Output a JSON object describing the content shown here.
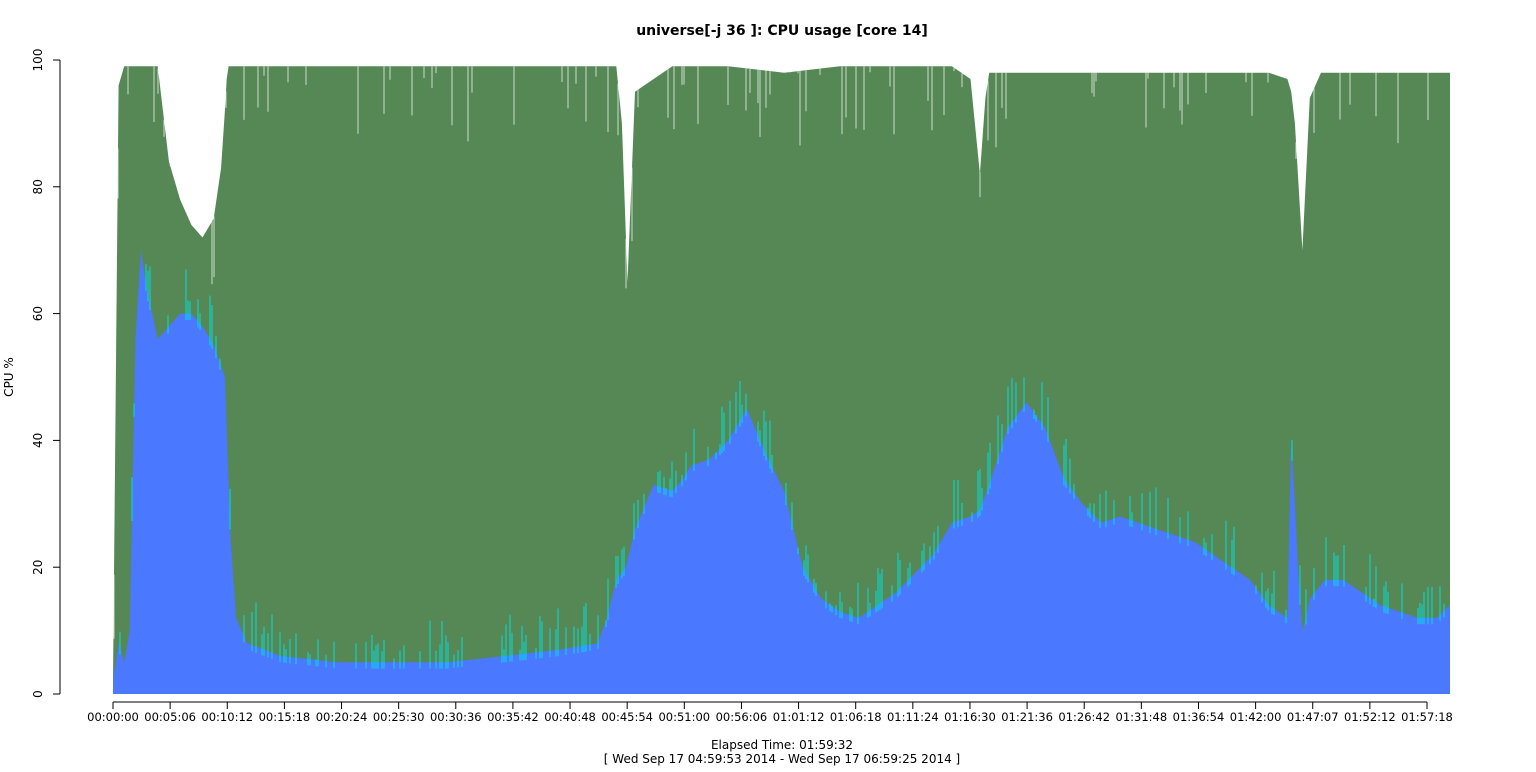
{
  "chart_data": {
    "type": "area",
    "title": "universe[-j 36  ]: CPU usage [core 14]",
    "ylabel": "CPU %",
    "xlabel": "Elapsed Time: 01:59:32",
    "subtitle": "[ Wed Sep 17 04:59:53 2014 - Wed Sep 17 06:59:25 2014 ]",
    "ylim": [
      0,
      100
    ],
    "yticks": [
      0,
      20,
      40,
      60,
      80,
      100
    ],
    "xlim_seconds": [
      0,
      7172
    ],
    "xticks": [
      "00:00:00",
      "00:05:06",
      "00:10:12",
      "00:15:18",
      "00:20:24",
      "00:25:30",
      "00:30:36",
      "00:35:42",
      "00:40:48",
      "00:45:54",
      "00:51:00",
      "00:56:06",
      "01:01:12",
      "01:06:18",
      "01:11:24",
      "01:16:30",
      "01:21:36",
      "01:26:42",
      "01:31:48",
      "01:36:54",
      "01:42:00",
      "01:47:07",
      "01:52:12",
      "01:57:18"
    ],
    "grid": false,
    "colors": {
      "total": "#558855",
      "user": "#4a78ff",
      "user_peak": "#00e5e5"
    },
    "series": [
      {
        "key": "total",
        "x": [
          0,
          30,
          60,
          120,
          180,
          240,
          300,
          360,
          420,
          480,
          540,
          580,
          600,
          610,
          620,
          660,
          900,
          1200,
          1500,
          1800,
          2100,
          2400,
          2600,
          2700,
          2730,
          2760,
          2800,
          3000,
          3300,
          3600,
          3900,
          4200,
          4500,
          4600,
          4650,
          4680,
          4700,
          4800,
          5100,
          5400,
          5700,
          6000,
          6200,
          6300,
          6320,
          6340,
          6380,
          6420,
          6480,
          6600,
          6900,
          7100,
          7172
        ],
        "values": [
          2,
          96,
          99,
          99,
          99,
          99,
          84,
          78,
          74,
          72,
          75,
          83,
          92,
          97,
          99,
          99,
          99,
          99,
          99,
          99,
          99,
          99,
          99,
          99,
          90,
          65,
          95,
          99,
          99,
          98,
          99,
          99,
          99,
          97,
          82,
          94,
          98,
          98,
          98,
          98,
          98,
          98,
          98,
          97,
          95,
          90,
          70,
          94,
          98,
          98,
          98,
          98,
          98
        ]
      },
      {
        "key": "user",
        "x": [
          0,
          30,
          60,
          90,
          120,
          150,
          180,
          240,
          300,
          360,
          420,
          480,
          540,
          600,
          630,
          660,
          720,
          900,
          1200,
          1500,
          1800,
          2100,
          2400,
          2600,
          2650,
          2700,
          2750,
          2800,
          2900,
          3000,
          3060,
          3100,
          3200,
          3300,
          3400,
          3500,
          3600,
          3700,
          3800,
          3900,
          4000,
          4100,
          4200,
          4300,
          4400,
          4500,
          4600,
          4650,
          4700,
          4800,
          4900,
          5000,
          5100,
          5200,
          5300,
          5400,
          5500,
          5600,
          5700,
          5800,
          5900,
          6000,
          6100,
          6200,
          6300,
          6320,
          6340,
          6360,
          6380,
          6400,
          6420,
          6500,
          6600,
          6700,
          6800,
          6900,
          7000,
          7100,
          7172
        ],
        "values": [
          2,
          8,
          5,
          10,
          56,
          70,
          64,
          56,
          58,
          60,
          60,
          58,
          55,
          50,
          25,
          12,
          8,
          6,
          5,
          5,
          5,
          6,
          7,
          8,
          12,
          18,
          20,
          26,
          33,
          32,
          34,
          36,
          37,
          40,
          45,
          38,
          32,
          20,
          15,
          13,
          12,
          14,
          16,
          19,
          22,
          27,
          28,
          29,
          33,
          42,
          46,
          42,
          34,
          30,
          27,
          28,
          27,
          26,
          25,
          24,
          22,
          20,
          18,
          14,
          12,
          40,
          30,
          18,
          10,
          12,
          15,
          18,
          18,
          16,
          14,
          13,
          12,
          12,
          14
        ]
      }
    ]
  }
}
